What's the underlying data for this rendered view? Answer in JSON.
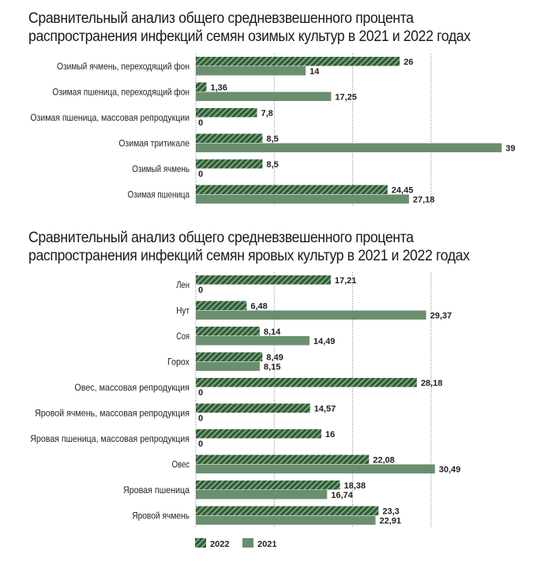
{
  "chart_data": [
    {
      "type": "bar",
      "orientation": "horizontal",
      "title": "Сравнительный анализ общего средневзвешенного процента распространения инфекций семян озимых культур в 2021 и 2022 годах",
      "categories": [
        "Озимый ячмень, переходящий фон",
        "Озимая пшеница, переходящий фон",
        "Озимая пшеница, массовая репродукции",
        "Озимая тритикале",
        "Озимый ячмень",
        "Озимая пшеница"
      ],
      "series": [
        {
          "name": "2022",
          "values": [
            26,
            1.36,
            7.8,
            8.5,
            8.5,
            24.45
          ],
          "labels": [
            "26",
            "1,36",
            "7,8",
            "8,5",
            "8,5",
            "24,45"
          ]
        },
        {
          "name": "2021",
          "values": [
            14,
            17.25,
            0,
            39,
            0,
            27.18
          ],
          "labels": [
            "14",
            "17,25",
            "0",
            "39",
            "0",
            "27,18"
          ]
        }
      ],
      "xlim": [
        0,
        40
      ],
      "grid": true
    },
    {
      "type": "bar",
      "orientation": "horizontal",
      "title": "Сравнительный анализ общего средневзвешенного процента распространения инфекций семян яровых культур в 2021 и 2022 годах",
      "categories": [
        "Лен",
        "Нут",
        "Соя",
        "Горох",
        "Овес, массовая репродукция",
        "Яровой ячмень, массовая репродукция",
        "Яровая пшеница, массовая репродукция",
        "Овес",
        "Яровая  пшеница",
        "Яровой ячмень"
      ],
      "series": [
        {
          "name": "2022",
          "values": [
            17.21,
            6.48,
            8.14,
            8.49,
            28.18,
            14.57,
            16,
            22.08,
            18.38,
            23.3
          ],
          "labels": [
            "17,21",
            "6,48",
            "8,14",
            "8,49",
            "28,18",
            "14,57",
            "16",
            "22,08",
            "18,38",
            "23,3"
          ]
        },
        {
          "name": "2021",
          "values": [
            0,
            29.37,
            14.49,
            8.15,
            0,
            0,
            0,
            30.49,
            16.74,
            22.91
          ],
          "labels": [
            "0",
            "29,37",
            "14,49",
            "8,15",
            "0",
            "0",
            "0",
            "30,49",
            "16,74",
            "22,91"
          ]
        }
      ],
      "xlim": [
        0,
        40
      ],
      "grid": true
    }
  ],
  "legend": [
    "2022",
    "2021"
  ],
  "colors": {
    "hatched": "#2f5e36",
    "solid": "#6b8f6e",
    "stripe": "#8db08f"
  }
}
